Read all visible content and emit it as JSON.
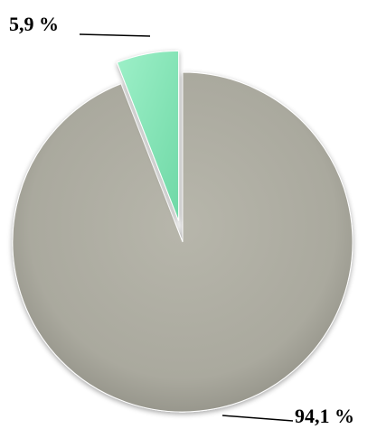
{
  "chart_data": {
    "type": "pie",
    "slices": [
      {
        "value": 94.1,
        "label": "94,1 %",
        "color": "#abaa9f",
        "exploded": false
      },
      {
        "value": 5.9,
        "label": "5,9 %",
        "color": "#8ee8bd",
        "exploded": true
      }
    ],
    "legend": "none",
    "title": ""
  }
}
